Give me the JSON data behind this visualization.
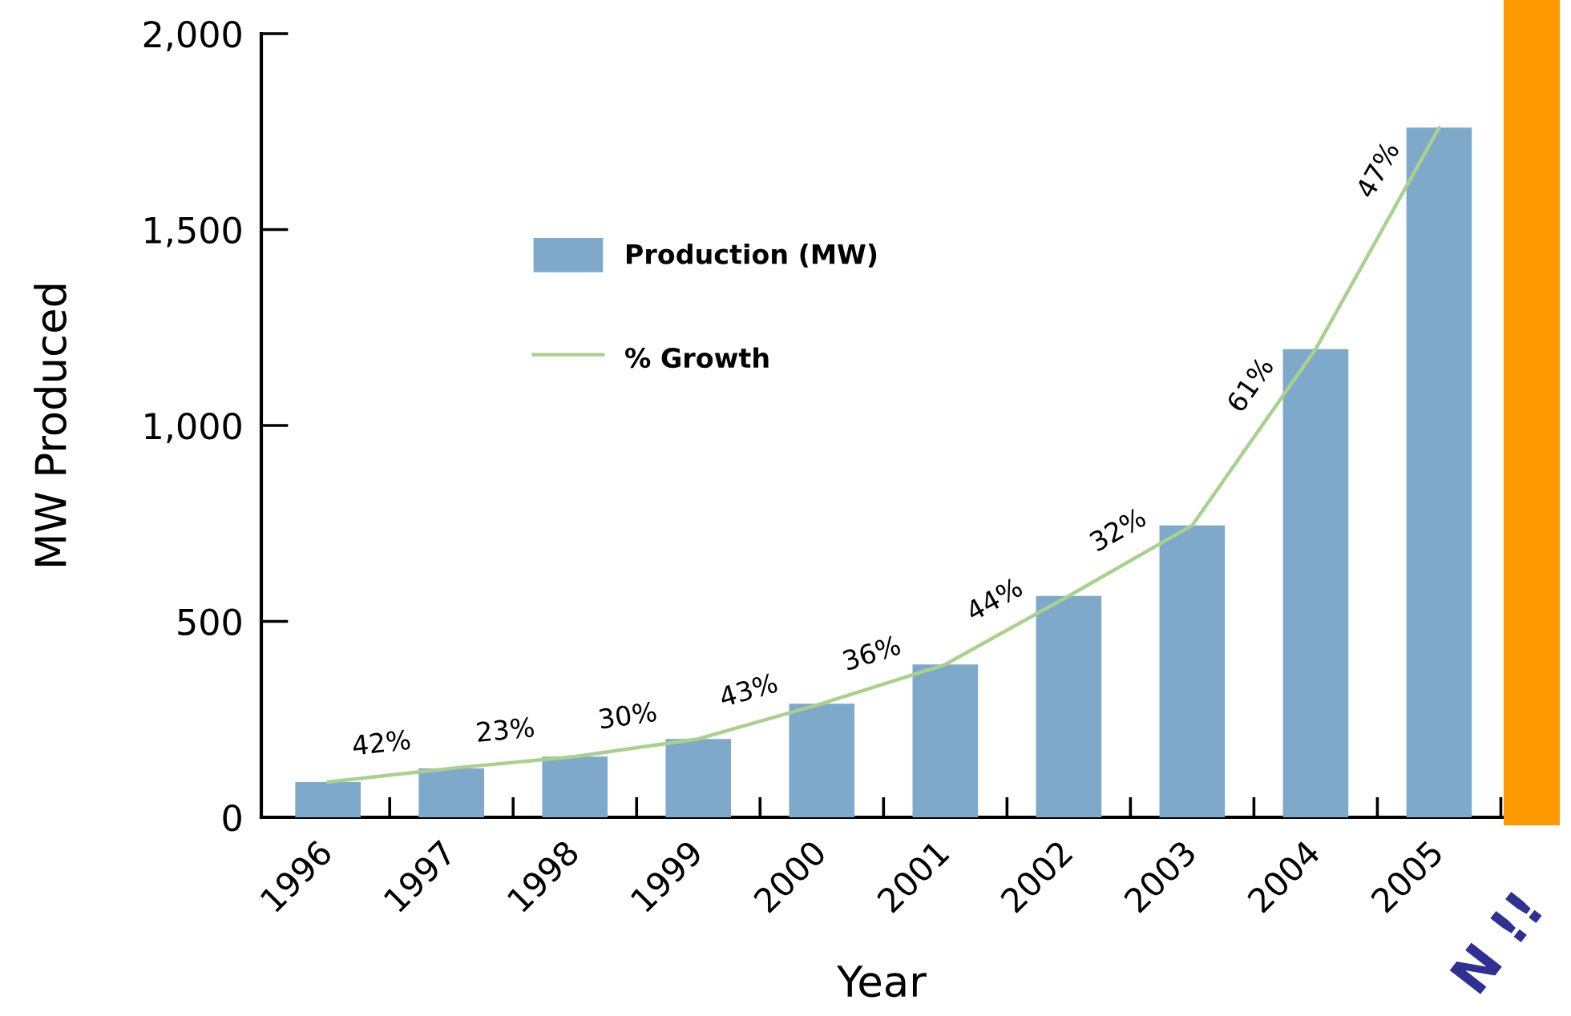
{
  "chart_data": {
    "type": "bar",
    "xlabel": "Year",
    "ylabel": "MW Produced",
    "categories": [
      "1996",
      "1997",
      "1998",
      "1999",
      "2000",
      "2001",
      "2002",
      "2003",
      "2004",
      "2005"
    ],
    "series": [
      {
        "name": "Production (MW)",
        "color": "#7ea9ca",
        "values": [
          90,
          125,
          155,
          200,
          290,
          390,
          565,
          745,
          1195,
          1760
        ]
      },
      {
        "name": "% Growth",
        "type": "line",
        "color": "#a9d18e",
        "values": [
          90,
          125,
          155,
          200,
          290,
          390,
          565,
          745,
          1195,
          1760
        ]
      }
    ],
    "ylim": [
      0,
      2000
    ],
    "yticks": [
      0,
      500,
      {
        "value": 1000,
        "label": "1,000"
      },
      {
        "value": 1500,
        "label": "1,500"
      },
      {
        "value": 2000,
        "label": "2,000"
      }
    ],
    "legend": "top left",
    "annotations": [
      {
        "text": "42%",
        "x": "1997",
        "y": 125
      },
      {
        "text": "23%",
        "x": "1998",
        "y": 155
      },
      {
        "text": "30%",
        "x": "1999",
        "y": 200
      },
      {
        "text": "43%",
        "x": "2000",
        "y": 290
      },
      {
        "text": "36%",
        "x": "2001",
        "y": 390
      },
      {
        "text": "44%",
        "x": "2002",
        "y": 565
      },
      {
        "text": "32%",
        "x": "2003",
        "y": 745
      },
      {
        "text": "61%",
        "x": "2004",
        "y": 1195
      },
      {
        "text": "47%",
        "x": "2005",
        "y": 1760
      },
      "N !!"
    ]
  }
}
